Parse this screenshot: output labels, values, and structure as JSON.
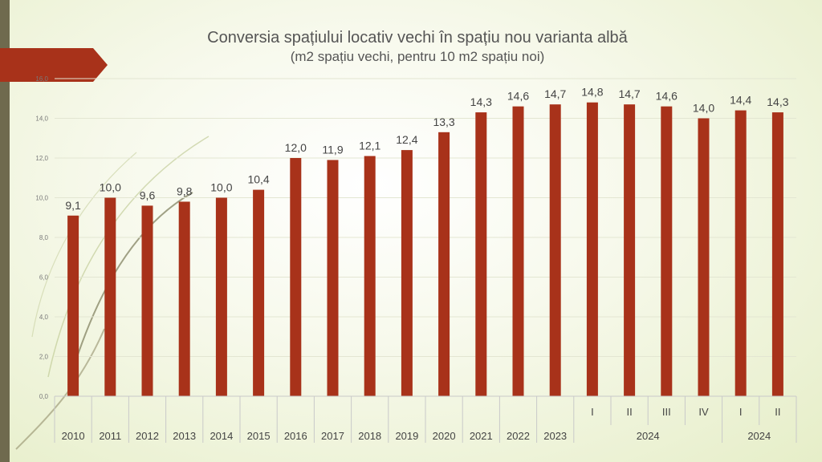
{
  "chart_data": {
    "type": "bar",
    "title": "Conversia spațiului locativ vechi în spațiu nou varianta albă",
    "subtitle": "(m2 spațiu vechi, pentru 10 m2 spațiu noi)",
    "categories": [
      "2010",
      "2011",
      "2012",
      "2013",
      "2014",
      "2015",
      "2016",
      "2017",
      "2018",
      "2019",
      "2020",
      "2021",
      "2022",
      "2023",
      "I",
      "II",
      "III",
      "IV",
      "I",
      "II"
    ],
    "values": [
      9.1,
      10.0,
      9.6,
      9.8,
      10.0,
      10.4,
      12.0,
      11.9,
      12.1,
      12.4,
      13.3,
      14.3,
      14.6,
      14.7,
      14.8,
      14.7,
      14.6,
      14.0,
      14.4,
      14.3
    ],
    "data_labels": [
      "9,1",
      "10,0",
      "9,6",
      "9,8",
      "10,0",
      "10,4",
      "12,0",
      "11,9",
      "12,1",
      "12,4",
      "13,3",
      "14,3",
      "14,6",
      "14,7",
      "14,8",
      "14,7",
      "14,6",
      "14,0",
      "14,4",
      "14,3"
    ],
    "groups": [
      {
        "label": "2024",
        "start": 14,
        "end": 17
      },
      {
        "label": "2024",
        "start": 18,
        "end": 19
      }
    ],
    "yticks": [
      "0,0",
      "2,0",
      "4,0",
      "6,0",
      "8,0",
      "10,0",
      "12,0",
      "14,0",
      "16,0"
    ],
    "ylim": [
      0,
      16
    ],
    "bar_color": "#a8321a",
    "grid": true
  }
}
